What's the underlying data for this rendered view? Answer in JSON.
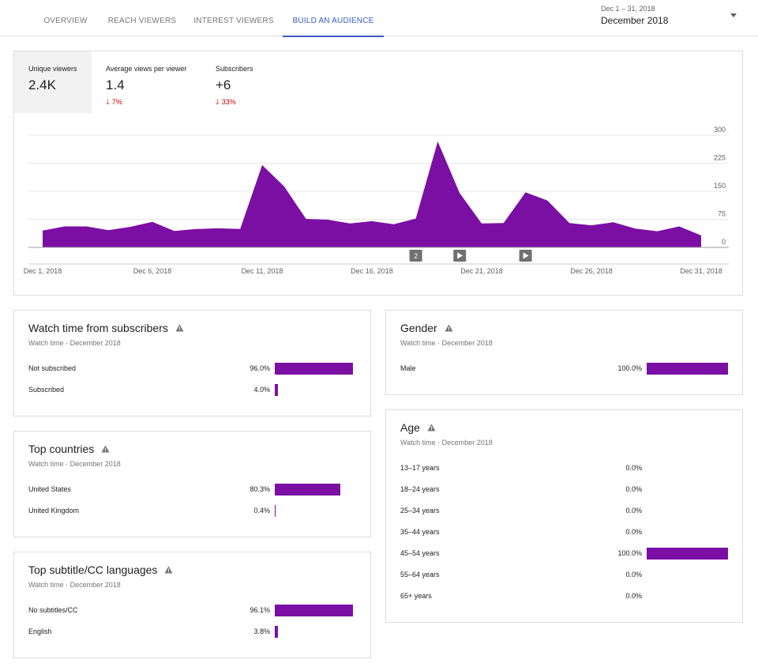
{
  "tabs": [
    {
      "label": "OVERVIEW",
      "active": false
    },
    {
      "label": "REACH VIEWERS",
      "active": false
    },
    {
      "label": "INTEREST VIEWERS",
      "active": false
    },
    {
      "label": "BUILD AN AUDIENCE",
      "active": true
    }
  ],
  "date_picker": {
    "range": "Dec 1 – 31, 2018",
    "label": "December 2018"
  },
  "metrics": [
    {
      "label": "Unique viewers",
      "value": "2.4K",
      "delta": "",
      "selected": true
    },
    {
      "label": "Average views per viewer",
      "value": "1.4",
      "delta": "7%",
      "selected": false
    },
    {
      "label": "Subscribers",
      "value": "+6",
      "delta": "33%",
      "selected": false
    }
  ],
  "chart_data": {
    "type": "area",
    "title": "Unique viewers",
    "x": [
      "Dec 1",
      "Dec 2",
      "Dec 3",
      "Dec 4",
      "Dec 5",
      "Dec 6",
      "Dec 7",
      "Dec 8",
      "Dec 9",
      "Dec 10",
      "Dec 11",
      "Dec 12",
      "Dec 13",
      "Dec 14",
      "Dec 15",
      "Dec 16",
      "Dec 17",
      "Dec 18",
      "Dec 19",
      "Dec 20",
      "Dec 21",
      "Dec 22",
      "Dec 23",
      "Dec 24",
      "Dec 25",
      "Dec 26",
      "Dec 27",
      "Dec 28",
      "Dec 29",
      "Dec 30",
      "Dec 31"
    ],
    "values": [
      45,
      56,
      56,
      46,
      55,
      68,
      44,
      49,
      51,
      49,
      220,
      163,
      76,
      74,
      64,
      70,
      62,
      77,
      283,
      145,
      64,
      65,
      147,
      125,
      65,
      59,
      67,
      50,
      43,
      56,
      32
    ],
    "x_tick_labels": [
      "Dec 1, 2018",
      "Dec 6, 2018",
      "Dec 11, 2018",
      "Dec 16, 2018",
      "Dec 21, 2018",
      "Dec 26, 2018",
      "Dec 31, 2018"
    ],
    "y_ticks": [
      0,
      75,
      150,
      225,
      300
    ],
    "ylim": [
      0,
      300
    ],
    "color": "#7b0fa3",
    "annotations": [
      {
        "day": 18,
        "label": "2",
        "kind": "count"
      },
      {
        "day": 20,
        "label": "",
        "kind": "video"
      },
      {
        "day": 23,
        "label": "",
        "kind": "video"
      }
    ]
  },
  "cards_left": [
    {
      "title": "Watch time from subscribers",
      "subtitle": "Watch time · December 2018",
      "rows": [
        {
          "label": "Not subscribed",
          "value": "96.0%",
          "pct": 96.0
        },
        {
          "label": "Subscribed",
          "value": "4.0%",
          "pct": 4.0
        }
      ]
    },
    {
      "title": "Top countries",
      "subtitle": "Watch time · December 2018",
      "rows": [
        {
          "label": "United States",
          "value": "80.3%",
          "pct": 80.3
        },
        {
          "label": "United Kingdom",
          "value": "0.4%",
          "pct": 0.4
        }
      ]
    },
    {
      "title": "Top subtitle/CC languages",
      "subtitle": "Watch time · December 2018",
      "rows": [
        {
          "label": "No subtitles/CC",
          "value": "96.1%",
          "pct": 96.1
        },
        {
          "label": "English",
          "value": "3.8%",
          "pct": 3.8
        }
      ]
    }
  ],
  "cards_right": [
    {
      "title": "Gender",
      "subtitle": "Watch time · December 2018",
      "rows": [
        {
          "label": "Male",
          "value": "100.0%",
          "pct": 100.0
        }
      ]
    },
    {
      "title": "Age",
      "subtitle": "Watch time · December 2018",
      "rows": [
        {
          "label": "13–17 years",
          "value": "0.0%",
          "pct": 0
        },
        {
          "label": "18–24 years",
          "value": "0.0%",
          "pct": 0
        },
        {
          "label": "25–34 years",
          "value": "0.0%",
          "pct": 0
        },
        {
          "label": "35–44 years",
          "value": "0.0%",
          "pct": 0
        },
        {
          "label": "45–54 years",
          "value": "100.0%",
          "pct": 100.0
        },
        {
          "label": "55–64 years",
          "value": "0.0%",
          "pct": 0
        },
        {
          "label": "65+ years",
          "value": "0.0%",
          "pct": 0
        }
      ]
    }
  ],
  "colors": {
    "accent": "#3d5bbd",
    "bar": "#7b0fa3",
    "negative": "#cc0000"
  }
}
